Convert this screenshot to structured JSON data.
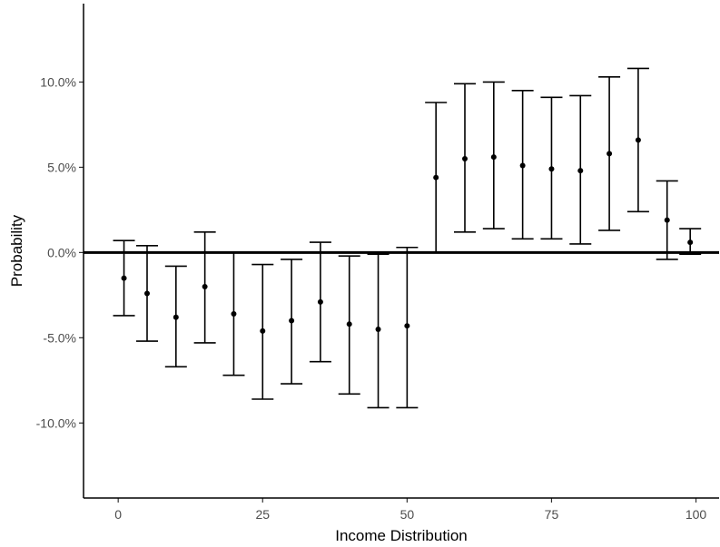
{
  "chart_data": {
    "type": "scatter",
    "style": "point-with-error-bars",
    "xlabel": "Income Distribution",
    "ylabel": "Probability",
    "xlim": [
      -6,
      104
    ],
    "ylim": [
      -14.4,
      14.6
    ],
    "xticks": [
      0,
      25,
      50,
      75,
      100
    ],
    "xtick_labels": [
      "0",
      "25",
      "50",
      "75",
      "100"
    ],
    "yticks": [
      10,
      5,
      0,
      -5,
      -10
    ],
    "ytick_labels": [
      "10.0%",
      "5.0%",
      "0.0%",
      "-5.0%",
      "-10.0%"
    ],
    "reference_line_y": 0,
    "grid": false,
    "points": [
      {
        "x": 1,
        "y": -1.5,
        "lower": -3.7,
        "upper": 0.7
      },
      {
        "x": 5,
        "y": -2.4,
        "lower": -5.2,
        "upper": 0.4
      },
      {
        "x": 10,
        "y": -3.8,
        "lower": -6.7,
        "upper": -0.8
      },
      {
        "x": 15,
        "y": -2.0,
        "lower": -5.3,
        "upper": 1.2
      },
      {
        "x": 20,
        "y": -3.6,
        "lower": -7.2,
        "upper": 0.0
      },
      {
        "x": 25,
        "y": -4.6,
        "lower": -8.6,
        "upper": -0.7
      },
      {
        "x": 30,
        "y": -4.0,
        "lower": -7.7,
        "upper": -0.4
      },
      {
        "x": 35,
        "y": -2.9,
        "lower": -6.4,
        "upper": 0.6
      },
      {
        "x": 40,
        "y": -4.2,
        "lower": -8.3,
        "upper": -0.2
      },
      {
        "x": 45,
        "y": -4.5,
        "lower": -9.1,
        "upper": -0.1
      },
      {
        "x": 50,
        "y": -4.3,
        "lower": -9.1,
        "upper": 0.3
      },
      {
        "x": 55,
        "y": 4.4,
        "lower": 0.0,
        "upper": 8.8
      },
      {
        "x": 60,
        "y": 5.5,
        "lower": 1.2,
        "upper": 9.9
      },
      {
        "x": 65,
        "y": 5.6,
        "lower": 1.4,
        "upper": 10.0
      },
      {
        "x": 70,
        "y": 5.1,
        "lower": 0.8,
        "upper": 9.5
      },
      {
        "x": 75,
        "y": 4.9,
        "lower": 0.8,
        "upper": 9.1
      },
      {
        "x": 80,
        "y": 4.8,
        "lower": 0.5,
        "upper": 9.2
      },
      {
        "x": 85,
        "y": 5.8,
        "lower": 1.3,
        "upper": 10.3
      },
      {
        "x": 90,
        "y": 6.6,
        "lower": 2.4,
        "upper": 10.8
      },
      {
        "x": 95,
        "y": 1.9,
        "lower": -0.4,
        "upper": 4.2
      },
      {
        "x": 99,
        "y": 0.6,
        "lower": -0.1,
        "upper": 1.4
      }
    ]
  }
}
